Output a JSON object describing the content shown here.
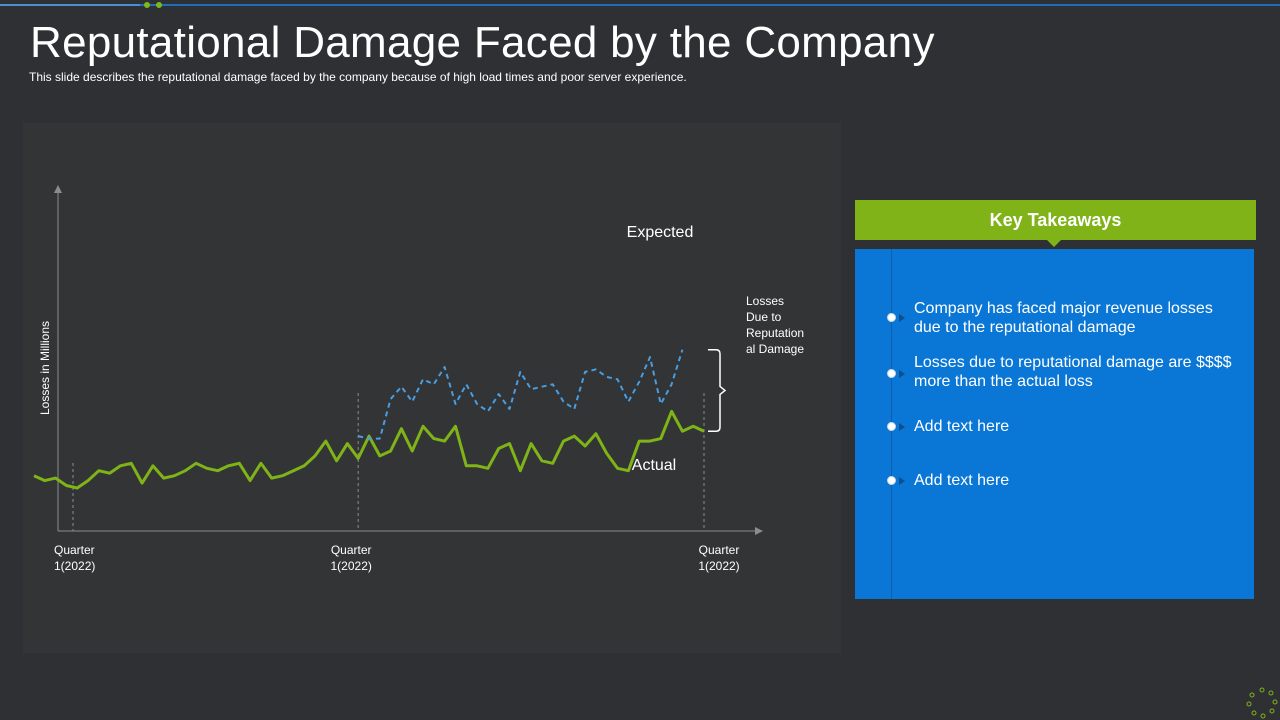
{
  "slide": {
    "title": "Reputational Damage Faced by the Company",
    "subtitle": "This slide describes the reputational damage faced by the company because of high load times and poor server experience."
  },
  "colors": {
    "background": "#2e3033",
    "accent_green": "#7fb317",
    "accent_blue": "#0a77d6",
    "actual_line": "#7fb317",
    "expected_line": "#4a9de0"
  },
  "chart_data": {
    "type": "line",
    "title": "",
    "xlabel": "",
    "ylabel": "Losses in Millions",
    "x_tick_labels": [
      {
        "x": 0,
        "lines": [
          "Quarter",
          "1(2022)"
        ]
      },
      {
        "x": 30,
        "lines": [
          "Quarter",
          "1(2022)"
        ]
      },
      {
        "x": 62,
        "lines": [
          "Quarter",
          "1(2022)"
        ]
      }
    ],
    "xlim": [
      0,
      62
    ],
    "ylim": [
      0,
      100
    ],
    "grid": false,
    "series": [
      {
        "name": "Actual",
        "label": "Actual",
        "values": [
          22,
          20,
          21,
          18,
          17,
          20,
          24,
          23,
          26,
          27,
          19,
          26,
          21,
          22,
          24,
          27,
          25,
          24,
          26,
          27,
          20,
          27,
          21,
          22,
          24,
          26,
          30,
          36,
          28,
          35,
          29,
          38,
          30,
          32,
          41,
          32,
          42,
          37,
          36,
          42,
          26,
          26,
          25,
          33,
          35,
          24,
          35,
          28,
          27,
          36,
          38,
          34,
          39,
          31,
          25,
          24,
          36,
          36,
          37,
          48,
          40,
          42,
          40
        ],
        "style": "solid"
      },
      {
        "name": "Expected",
        "label": "Expected",
        "start_index": 30,
        "values": [
          38,
          37,
          37,
          53,
          58,
          52,
          61,
          59,
          66,
          51,
          59,
          51,
          48,
          55,
          49,
          64,
          57,
          58,
          59,
          52,
          49,
          64,
          65,
          62,
          61,
          52,
          60,
          70,
          51,
          59,
          73
        ],
        "style": "dashed"
      }
    ],
    "annotations": {
      "expected_label": "Expected",
      "actual_label": "Actual",
      "bracket_label_lines": [
        "Losses",
        "Due to",
        "Reputation",
        "al Damage"
      ]
    }
  },
  "takeaways": {
    "header": "Key Takeaways",
    "items": [
      "Company has faced major revenue losses due to the reputational damage",
      "Losses due to reputational damage are $$$$ more than the actual loss",
      "Add text here",
      "Add text here"
    ]
  }
}
